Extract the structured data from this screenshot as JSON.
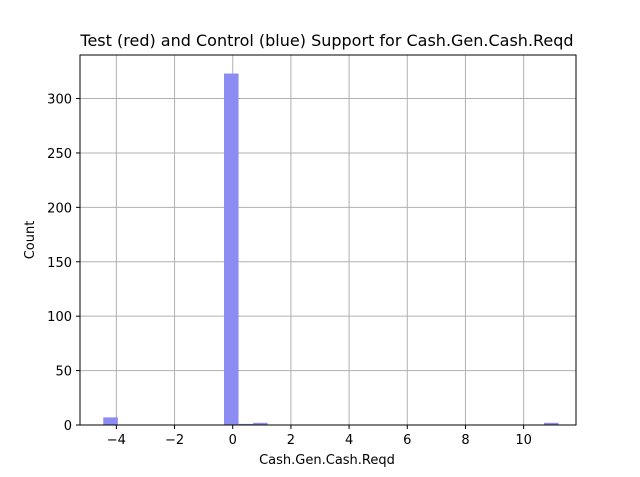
{
  "chart_data": {
    "type": "bar",
    "title": "Test (red) and Control (blue) Support for Cash.Gen.Cash.Reqd",
    "xlabel": "Cash.Gen.Cash.Reqd",
    "ylabel": "Count",
    "xlim": [
      -5.25,
      11.8
    ],
    "ylim": [
      0,
      340
    ],
    "xticks": [
      -4,
      -2,
      0,
      2,
      4,
      6,
      8,
      10
    ],
    "yticks": [
      0,
      50,
      100,
      150,
      200,
      250,
      300
    ],
    "grid": true,
    "series": [
      {
        "color": "#8c8cf2",
        "bins": [
          {
            "x0": -4.45,
            "x1": -3.95,
            "value": 7
          },
          {
            "x0": -0.3,
            "x1": 0.2,
            "value": 323
          },
          {
            "x0": 0.2,
            "x1": 0.7,
            "value": 1
          },
          {
            "x0": 0.7,
            "x1": 1.2,
            "value": 2
          },
          {
            "x0": 10.7,
            "x1": 11.2,
            "value": 2
          }
        ]
      }
    ]
  }
}
